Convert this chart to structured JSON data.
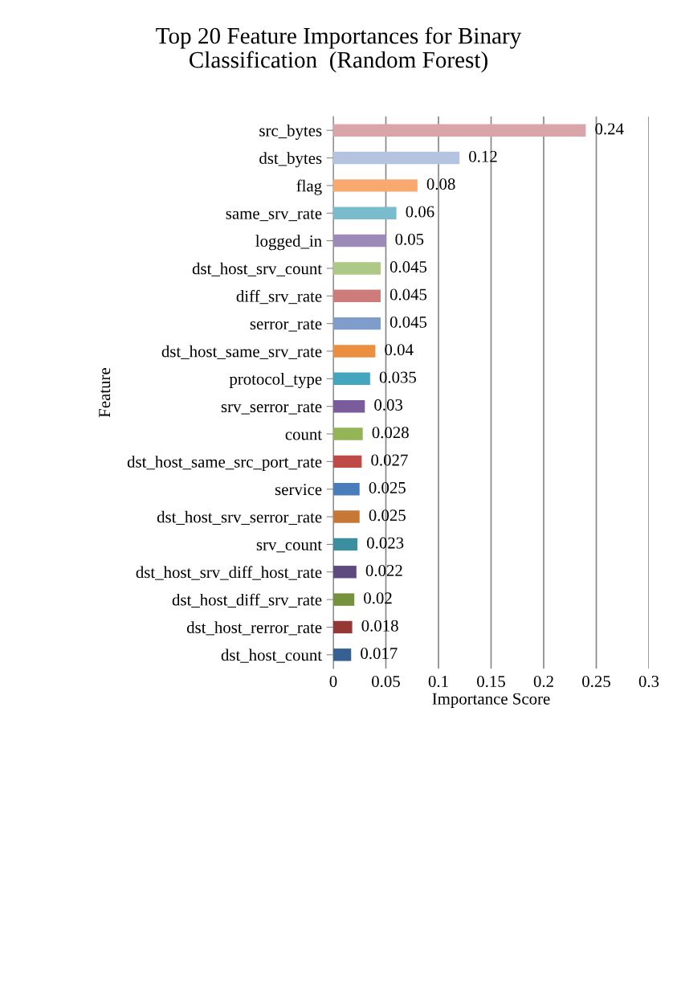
{
  "chart_data": {
    "type": "bar",
    "orientation": "horizontal",
    "title": "Top 20 Feature Importances for Binary\nClassification  (Random Forest)",
    "xlabel": "Importance Score",
    "ylabel": "Feature",
    "categories": [
      "src_bytes",
      "dst_bytes",
      "flag",
      "same_srv_rate",
      "logged_in",
      "dst_host_srv_count",
      "diff_srv_rate",
      "serror_rate",
      "dst_host_same_srv_rate",
      "protocol_type",
      "srv_serror_rate",
      "count",
      "dst_host_same_src_port_rate",
      "service",
      "dst_host_srv_serror_rate",
      "srv_count",
      "dst_host_srv_diff_host_rate",
      "dst_host_diff_srv_rate",
      "dst_host_rerror_rate",
      "dst_host_count"
    ],
    "values": [
      0.24,
      0.12,
      0.08,
      0.06,
      0.05,
      0.045,
      0.045,
      0.045,
      0.04,
      0.035,
      0.03,
      0.028,
      0.027,
      0.025,
      0.025,
      0.023,
      0.022,
      0.02,
      0.018,
      0.017
    ],
    "colors": [
      "#d9a5a8",
      "#b3c3e0",
      "#f9a870",
      "#78bccd",
      "#9e8ab8",
      "#aec985",
      "#cd7b7b",
      "#7f9ccb",
      "#ea8e3f",
      "#45a5bf",
      "#7a5c9c",
      "#93b556",
      "#be4b48",
      "#4a7ebb",
      "#c77836",
      "#3a8ea0",
      "#5f4a7f",
      "#76923c",
      "#953735",
      "#376092"
    ],
    "xlim": [
      0,
      0.3
    ],
    "xticks": [
      0,
      0.05,
      0.1,
      0.15,
      0.2,
      0.25,
      0.3
    ],
    "grid": "x",
    "data_labels": true
  }
}
